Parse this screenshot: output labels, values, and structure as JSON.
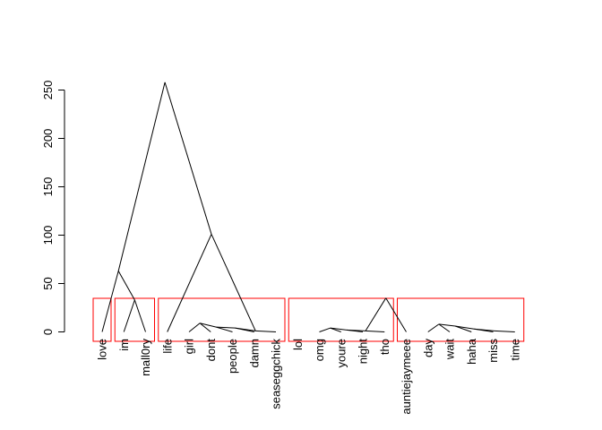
{
  "chart_data": {
    "type": "dendrogram",
    "title": "",
    "xlabel": "",
    "ylabel": "",
    "ylim": [
      0,
      260
    ],
    "yticks": [
      0,
      50,
      100,
      150,
      200,
      250
    ],
    "ytick_labels": [
      "0",
      "50",
      "100",
      "150",
      "200",
      "250"
    ],
    "leaves": [
      "love",
      "im",
      "mall0ry",
      "life",
      "girl",
      "dont",
      "people",
      "damn",
      "seaseggchick",
      "lol",
      "omg",
      "youre",
      "night",
      "tho",
      "auntiejaymeee",
      "day",
      "wait",
      "haha",
      "miss",
      "time"
    ],
    "nodes": [
      {
        "children": [
          4,
          5
        ],
        "height": 9
      },
      {
        "children": [
          5,
          6
        ],
        "height": 5
      },
      {
        "children": [
          6,
          7
        ],
        "height": 4
      },
      {
        "children": [
          7,
          8
        ],
        "height": 1
      },
      {
        "children": [
          10,
          11
        ],
        "height": 4
      },
      {
        "children": [
          11,
          12
        ],
        "height": 2
      },
      {
        "children": [
          12,
          13
        ],
        "height": 1
      },
      {
        "children": [
          15,
          16
        ],
        "height": 8
      },
      {
        "children": [
          16,
          17
        ],
        "height": 6
      },
      {
        "children": [
          17,
          18
        ],
        "height": 3
      },
      {
        "children": [
          18,
          19
        ],
        "height": 1
      },
      {
        "children": [
          1,
          2
        ],
        "height": 33
      },
      {
        "children": [
          0,
          1
        ],
        "height": 63
      },
      {
        "children": [
          13,
          14
        ],
        "height": 35
      },
      {
        "children": [
          3,
          4
        ],
        "height": 101
      },
      {
        "children": [
          2,
          3
        ],
        "height": 258
      }
    ],
    "cluster_boxes": [
      {
        "members": [
          "love"
        ]
      },
      {
        "members": [
          "im",
          "mall0ry"
        ]
      },
      {
        "members": [
          "life",
          "girl",
          "dont",
          "people",
          "damn",
          "seaseggchick"
        ]
      },
      {
        "members": [
          "lol",
          "omg",
          "youre",
          "night",
          "tho"
        ]
      },
      {
        "members": [
          "auntiejaymeee",
          "day",
          "wait",
          "haha",
          "miss",
          "time"
        ]
      }
    ],
    "colors": {
      "branches": "#000000",
      "cluster_box": "#ff0000",
      "axis": "#000000"
    }
  }
}
